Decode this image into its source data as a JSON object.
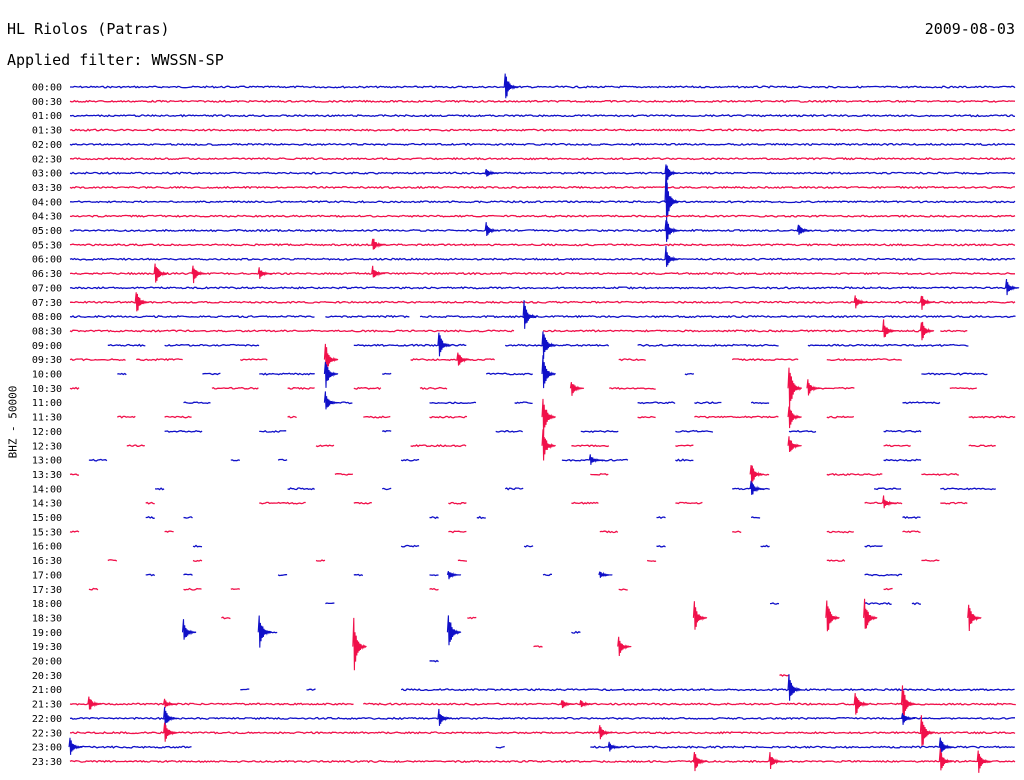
{
  "header": {
    "station": "HL Riolos (Patras)",
    "date": "2009-08-03",
    "filter": "Applied filter: WWSSN-SP"
  },
  "colors": {
    "even": "#1010c8",
    "odd": "#f0104a"
  },
  "chart_data": {
    "type": "line",
    "title": "HL Riolos (Patras)",
    "ylabel": "BHZ - 50000",
    "rows": [
      {
        "label": "00:00",
        "segments": [
          [
            0,
            1
          ]
        ],
        "events": [
          [
            0.46,
            18
          ]
        ]
      },
      {
        "label": "00:30",
        "segments": [
          [
            0,
            1
          ]
        ],
        "events": []
      },
      {
        "label": "01:00",
        "segments": [
          [
            0,
            1
          ]
        ],
        "events": []
      },
      {
        "label": "01:30",
        "segments": [
          [
            0,
            1
          ]
        ],
        "events": []
      },
      {
        "label": "02:00",
        "segments": [
          [
            0,
            1
          ]
        ],
        "events": []
      },
      {
        "label": "02:30",
        "segments": [
          [
            0,
            1
          ]
        ],
        "events": []
      },
      {
        "label": "03:00",
        "segments": [
          [
            0,
            1
          ]
        ],
        "events": [
          [
            0.44,
            6
          ],
          [
            0.63,
            12
          ]
        ]
      },
      {
        "label": "03:30",
        "segments": [
          [
            0,
            1
          ]
        ],
        "events": []
      },
      {
        "label": "04:00",
        "segments": [
          [
            0,
            1
          ]
        ],
        "events": [
          [
            0.63,
            30
          ]
        ]
      },
      {
        "label": "04:30",
        "segments": [
          [
            0,
            1
          ]
        ],
        "events": []
      },
      {
        "label": "05:00",
        "segments": [
          [
            0,
            1
          ]
        ],
        "events": [
          [
            0.44,
            9
          ],
          [
            0.63,
            16
          ],
          [
            0.77,
            8
          ]
        ]
      },
      {
        "label": "05:30",
        "segments": [
          [
            0,
            1
          ]
        ],
        "events": [
          [
            0.32,
            9
          ]
        ]
      },
      {
        "label": "06:00",
        "segments": [
          [
            0,
            1
          ]
        ],
        "events": [
          [
            0.63,
            14
          ]
        ]
      },
      {
        "label": "06:30",
        "segments": [
          [
            0,
            1
          ]
        ],
        "events": [
          [
            0.09,
            16
          ],
          [
            0.13,
            12
          ],
          [
            0.2,
            7
          ],
          [
            0.32,
            8
          ]
        ]
      },
      {
        "label": "07:00",
        "segments": [
          [
            0,
            1
          ]
        ],
        "events": [
          [
            0.99,
            9
          ]
        ]
      },
      {
        "label": "07:30",
        "segments": [
          [
            0,
            1
          ]
        ],
        "events": [
          [
            0.07,
            15
          ],
          [
            0.83,
            9
          ],
          [
            0.9,
            10
          ]
        ]
      },
      {
        "label": "08:00",
        "segments": [
          [
            0,
            0.26
          ],
          [
            0.27,
            0.36
          ],
          [
            0.37,
            1
          ]
        ],
        "events": [
          [
            0.48,
            18
          ]
        ]
      },
      {
        "label": "08:30",
        "segments": [
          [
            0,
            0.47
          ],
          [
            0.5,
            0.9
          ],
          [
            0.92,
            0.95
          ]
        ],
        "events": [
          [
            0.86,
            12
          ],
          [
            0.9,
            14
          ]
        ]
      },
      {
        "label": "09:00",
        "segments": [
          [
            0.04,
            0.08
          ],
          [
            0.1,
            0.2
          ],
          [
            0.3,
            0.42
          ],
          [
            0.46,
            0.57
          ],
          [
            0.6,
            0.75
          ],
          [
            0.78,
            0.95
          ]
        ],
        "events": [
          [
            0.39,
            16
          ],
          [
            0.5,
            20
          ]
        ]
      },
      {
        "label": "09:30",
        "segments": [
          [
            0.0,
            0.06
          ],
          [
            0.07,
            0.12
          ],
          [
            0.18,
            0.21
          ],
          [
            0.36,
            0.45
          ],
          [
            0.58,
            0.61
          ],
          [
            0.7,
            0.77
          ],
          [
            0.8,
            0.88
          ]
        ],
        "events": [
          [
            0.41,
            10
          ],
          [
            0.27,
            20
          ]
        ]
      },
      {
        "label": "10:00",
        "segments": [
          [
            0.05,
            0.06
          ],
          [
            0.14,
            0.16
          ],
          [
            0.2,
            0.26
          ],
          [
            0.33,
            0.34
          ],
          [
            0.44,
            0.49
          ],
          [
            0.65,
            0.66
          ],
          [
            0.9,
            0.97
          ]
        ],
        "events": [
          [
            0.27,
            18
          ],
          [
            0.5,
            22
          ]
        ]
      },
      {
        "label": "10:30",
        "segments": [
          [
            0.0,
            0.01
          ],
          [
            0.15,
            0.2
          ],
          [
            0.23,
            0.26
          ],
          [
            0.3,
            0.33
          ],
          [
            0.37,
            0.4
          ],
          [
            0.57,
            0.62
          ],
          [
            0.78,
            0.83
          ],
          [
            0.93,
            0.96
          ]
        ],
        "events": [
          [
            0.53,
            10
          ],
          [
            0.78,
            10
          ],
          [
            0.76,
            30
          ]
        ]
      },
      {
        "label": "11:00",
        "segments": [
          [
            0.12,
            0.15
          ],
          [
            0.27,
            0.3
          ],
          [
            0.38,
            0.43
          ],
          [
            0.47,
            0.49
          ],
          [
            0.6,
            0.64
          ],
          [
            0.66,
            0.69
          ],
          [
            0.72,
            0.74
          ],
          [
            0.88,
            0.92
          ]
        ],
        "events": [
          [
            0.27,
            12
          ]
        ]
      },
      {
        "label": "11:30",
        "segments": [
          [
            0.05,
            0.07
          ],
          [
            0.1,
            0.13
          ],
          [
            0.23,
            0.24
          ],
          [
            0.31,
            0.34
          ],
          [
            0.38,
            0.42
          ],
          [
            0.6,
            0.62
          ],
          [
            0.66,
            0.75
          ],
          [
            0.8,
            0.83
          ],
          [
            0.95,
            1.0
          ]
        ],
        "events": [
          [
            0.5,
            26
          ],
          [
            0.76,
            14
          ]
        ]
      },
      {
        "label": "12:00",
        "segments": [
          [
            0.1,
            0.14
          ],
          [
            0.2,
            0.23
          ],
          [
            0.33,
            0.34
          ],
          [
            0.45,
            0.48
          ],
          [
            0.54,
            0.58
          ],
          [
            0.64,
            0.68
          ],
          [
            0.76,
            0.79
          ],
          [
            0.86,
            0.9
          ]
        ],
        "events": []
      },
      {
        "label": "12:30",
        "segments": [
          [
            0.06,
            0.08
          ],
          [
            0.26,
            0.28
          ],
          [
            0.36,
            0.42
          ],
          [
            0.53,
            0.57
          ],
          [
            0.64,
            0.66
          ],
          [
            0.86,
            0.89
          ],
          [
            0.95,
            0.98
          ]
        ],
        "events": [
          [
            0.5,
            18
          ],
          [
            0.76,
            12
          ]
        ]
      },
      {
        "label": "13:00",
        "segments": [
          [
            0.02,
            0.04
          ],
          [
            0.17,
            0.18
          ],
          [
            0.22,
            0.23
          ],
          [
            0.35,
            0.37
          ],
          [
            0.52,
            0.59
          ],
          [
            0.64,
            0.66
          ],
          [
            0.86,
            0.9
          ]
        ],
        "events": [
          [
            0.55,
            6
          ]
        ]
      },
      {
        "label": "13:30",
        "segments": [
          [
            0.0,
            0.01
          ],
          [
            0.28,
            0.3
          ],
          [
            0.55,
            0.57
          ],
          [
            0.72,
            0.74
          ],
          [
            0.8,
            0.86
          ],
          [
            0.9,
            0.94
          ]
        ],
        "events": [
          [
            0.72,
            14
          ]
        ]
      },
      {
        "label": "14:00",
        "segments": [
          [
            0.09,
            0.1
          ],
          [
            0.23,
            0.26
          ],
          [
            0.33,
            0.34
          ],
          [
            0.46,
            0.48
          ],
          [
            0.7,
            0.74
          ],
          [
            0.85,
            0.88
          ],
          [
            0.92,
            0.98
          ]
        ],
        "events": [
          [
            0.72,
            10
          ]
        ]
      },
      {
        "label": "14:30",
        "segments": [
          [
            0.08,
            0.09
          ],
          [
            0.2,
            0.25
          ],
          [
            0.3,
            0.32
          ],
          [
            0.4,
            0.42
          ],
          [
            0.53,
            0.56
          ],
          [
            0.64,
            0.67
          ],
          [
            0.84,
            0.88
          ],
          [
            0.92,
            0.95
          ]
        ],
        "events": [
          [
            0.86,
            8
          ]
        ]
      },
      {
        "label": "15:00",
        "segments": [
          [
            0.08,
            0.09
          ],
          [
            0.12,
            0.13
          ],
          [
            0.38,
            0.39
          ],
          [
            0.43,
            0.44
          ],
          [
            0.62,
            0.63
          ],
          [
            0.72,
            0.73
          ],
          [
            0.88,
            0.9
          ]
        ],
        "events": []
      },
      {
        "label": "15:30",
        "segments": [
          [
            0.0,
            0.01
          ],
          [
            0.1,
            0.11
          ],
          [
            0.4,
            0.42
          ],
          [
            0.56,
            0.58
          ],
          [
            0.7,
            0.71
          ],
          [
            0.8,
            0.83
          ],
          [
            0.88,
            0.9
          ]
        ],
        "events": []
      },
      {
        "label": "16:00",
        "segments": [
          [
            0.13,
            0.14
          ],
          [
            0.35,
            0.37
          ],
          [
            0.48,
            0.49
          ],
          [
            0.62,
            0.63
          ],
          [
            0.73,
            0.74
          ],
          [
            0.84,
            0.86
          ]
        ],
        "events": []
      },
      {
        "label": "16:30",
        "segments": [
          [
            0.04,
            0.05
          ],
          [
            0.13,
            0.14
          ],
          [
            0.26,
            0.27
          ],
          [
            0.41,
            0.42
          ],
          [
            0.61,
            0.62
          ],
          [
            0.8,
            0.82
          ],
          [
            0.9,
            0.92
          ]
        ],
        "events": []
      },
      {
        "label": "17:00",
        "segments": [
          [
            0.08,
            0.09
          ],
          [
            0.12,
            0.13
          ],
          [
            0.22,
            0.23
          ],
          [
            0.3,
            0.31
          ],
          [
            0.38,
            0.39
          ],
          [
            0.5,
            0.51
          ],
          [
            0.56,
            0.57
          ],
          [
            0.84,
            0.88
          ]
        ],
        "events": [
          [
            0.4,
            6
          ],
          [
            0.56,
            5
          ]
        ]
      },
      {
        "label": "17:30",
        "segments": [
          [
            0.02,
            0.03
          ],
          [
            0.12,
            0.14
          ],
          [
            0.17,
            0.18
          ],
          [
            0.38,
            0.39
          ],
          [
            0.58,
            0.59
          ],
          [
            0.86,
            0.87
          ]
        ],
        "events": []
      },
      {
        "label": "18:00",
        "segments": [
          [
            0.27,
            0.28
          ],
          [
            0.74,
            0.75
          ],
          [
            0.84,
            0.87
          ],
          [
            0.89,
            0.9
          ]
        ],
        "events": []
      },
      {
        "label": "18:30",
        "segments": [
          [
            0.16,
            0.17
          ],
          [
            0.42,
            0.43
          ],
          [
            0.66,
            0.67
          ]
        ],
        "events": [
          [
            0.66,
            18
          ],
          [
            0.8,
            22
          ],
          [
            0.84,
            22
          ],
          [
            0.95,
            18
          ]
        ]
      },
      {
        "label": "19:00",
        "segments": [
          [
            0.12,
            0.13
          ],
          [
            0.2,
            0.22
          ],
          [
            0.4,
            0.41
          ],
          [
            0.53,
            0.54
          ]
        ],
        "events": [
          [
            0.12,
            14
          ],
          [
            0.2,
            20
          ],
          [
            0.4,
            22
          ]
        ]
      },
      {
        "label": "19:30",
        "segments": [
          [
            0.49,
            0.5
          ],
          [
            0.58,
            0.59
          ]
        ],
        "events": [
          [
            0.3,
            30
          ],
          [
            0.58,
            12
          ]
        ]
      },
      {
        "label": "20:00",
        "segments": [
          [
            0.38,
            0.39
          ]
        ],
        "events": []
      },
      {
        "label": "20:30",
        "segments": [
          [
            0.75,
            0.76
          ]
        ],
        "events": []
      },
      {
        "label": "21:00",
        "segments": [
          [
            0.18,
            0.19
          ],
          [
            0.25,
            0.26
          ],
          [
            0.35,
            1
          ]
        ],
        "events": [
          [
            0.76,
            18
          ]
        ]
      },
      {
        "label": "21:30",
        "segments": [
          [
            0,
            0.3
          ],
          [
            0.31,
            1
          ]
        ],
        "events": [
          [
            0.02,
            10
          ],
          [
            0.1,
            6
          ],
          [
            0.52,
            6
          ],
          [
            0.54,
            5
          ],
          [
            0.83,
            18
          ],
          [
            0.88,
            22
          ]
        ]
      },
      {
        "label": "22:00",
        "segments": [
          [
            0,
            1
          ]
        ],
        "events": [
          [
            0.1,
            12
          ],
          [
            0.39,
            10
          ],
          [
            0.88,
            8
          ]
        ]
      },
      {
        "label": "22:30",
        "segments": [
          [
            0,
            1
          ]
        ],
        "events": [
          [
            0.1,
            14
          ],
          [
            0.56,
            10
          ],
          [
            0.9,
            22
          ]
        ]
      },
      {
        "label": "23:00",
        "segments": [
          [
            0,
            0.13
          ],
          [
            0.45,
            0.46
          ],
          [
            0.55,
            1
          ]
        ],
        "events": [
          [
            0.0,
            10
          ],
          [
            0.57,
            6
          ],
          [
            0.92,
            12
          ]
        ]
      },
      {
        "label": "23:30",
        "segments": [
          [
            0,
            1
          ]
        ],
        "events": [
          [
            0.66,
            14
          ],
          [
            0.74,
            10
          ],
          [
            0.92,
            14
          ],
          [
            0.96,
            14
          ]
        ]
      }
    ]
  }
}
